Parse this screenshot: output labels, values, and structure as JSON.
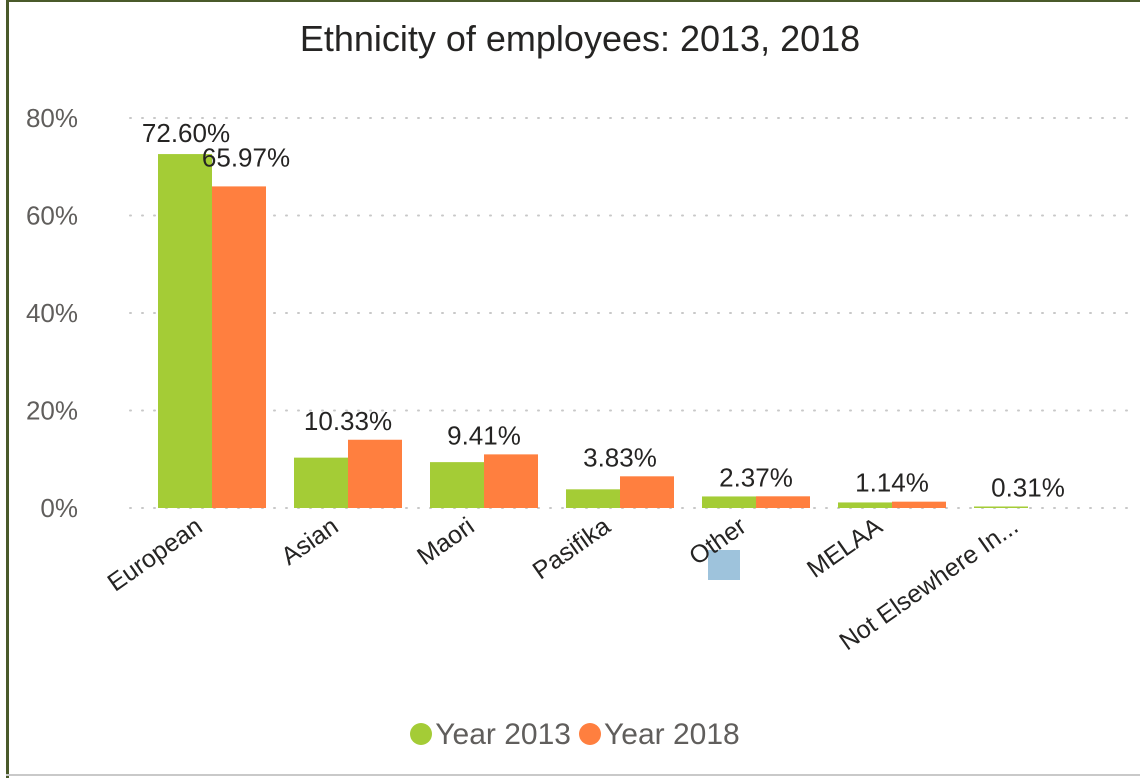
{
  "chart_data": {
    "type": "bar",
    "title": "Ethnicity of employees: 2013, 2018",
    "categories": [
      "European",
      "Asian",
      "Maori",
      "Pasifika",
      "Other",
      "MELAA",
      "Not Elsewhere In..."
    ],
    "series": [
      {
        "name": "Year 2013",
        "color": "#a4cc36",
        "values": [
          72.6,
          10.33,
          9.41,
          3.83,
          2.37,
          1.14,
          0.31
        ]
      },
      {
        "name": "Year 2018",
        "color": "#ff7f3f",
        "values": [
          65.97,
          14.0,
          11.0,
          6.5,
          2.4,
          1.3,
          0
        ]
      }
    ],
    "data_labels": [
      {
        "series": 0,
        "index": 0,
        "text": "72.60%"
      },
      {
        "series": 1,
        "index": 0,
        "text": "65.97%"
      },
      {
        "series": 0,
        "index": 1,
        "text": "10.33%"
      },
      {
        "series": 0,
        "index": 2,
        "text": "9.41%"
      },
      {
        "series": 0,
        "index": 3,
        "text": "3.83%"
      },
      {
        "series": 0,
        "index": 4,
        "text": "2.37%"
      },
      {
        "series": 0,
        "index": 5,
        "text": "1.14%"
      },
      {
        "series": 0,
        "index": 6,
        "text": "0.31%"
      }
    ],
    "y_ticks": [
      "0%",
      "20%",
      "40%",
      "60%",
      "80%"
    ],
    "ylim": [
      0,
      80
    ],
    "grid": true,
    "legend_position": "bottom-center",
    "highlighted_category": "Other"
  }
}
